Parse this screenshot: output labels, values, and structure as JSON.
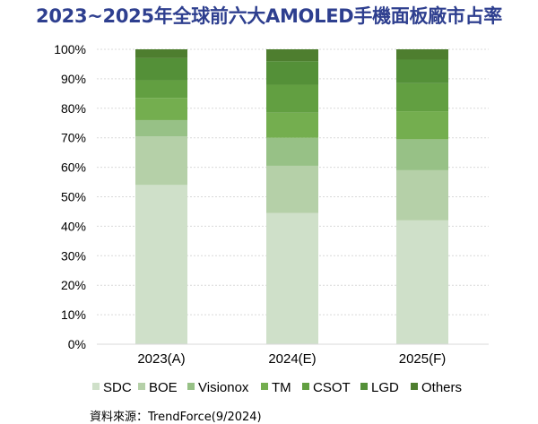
{
  "chart_data": {
    "type": "bar",
    "stacked": true,
    "title": "2023~2025年全球前六大AMOLED手機面板廠市占率",
    "categories": [
      "2023(A)",
      "2024(E)",
      "2025(F)"
    ],
    "ylim": [
      0,
      100
    ],
    "yticks": [
      "0%",
      "10%",
      "20%",
      "30%",
      "40%",
      "50%",
      "60%",
      "70%",
      "80%",
      "90%",
      "100%"
    ],
    "grid": true,
    "legend_position": "bottom",
    "series": [
      {
        "name": "SDC",
        "color": "#cfe0c9",
        "values": [
          54,
          44.5,
          42
        ]
      },
      {
        "name": "BOE",
        "color": "#b5d0a8",
        "values": [
          16.5,
          16,
          17
        ]
      },
      {
        "name": "Visionox",
        "color": "#97c186",
        "values": [
          5.5,
          9.5,
          10.5
        ]
      },
      {
        "name": "TM",
        "color": "#74ae4f",
        "values": [
          7.5,
          8.5,
          9.5
        ]
      },
      {
        "name": "CSOT",
        "color": "#629f41",
        "values": [
          6,
          9.5,
          9.5
        ]
      },
      {
        "name": "LGD",
        "color": "#549038",
        "values": [
          7.5,
          8,
          8
        ]
      },
      {
        "name": "Others",
        "color": "#4e7e2f",
        "values": [
          3,
          4,
          3.5
        ]
      }
    ]
  },
  "source": "資料來源：TrendForce(9/2024)"
}
